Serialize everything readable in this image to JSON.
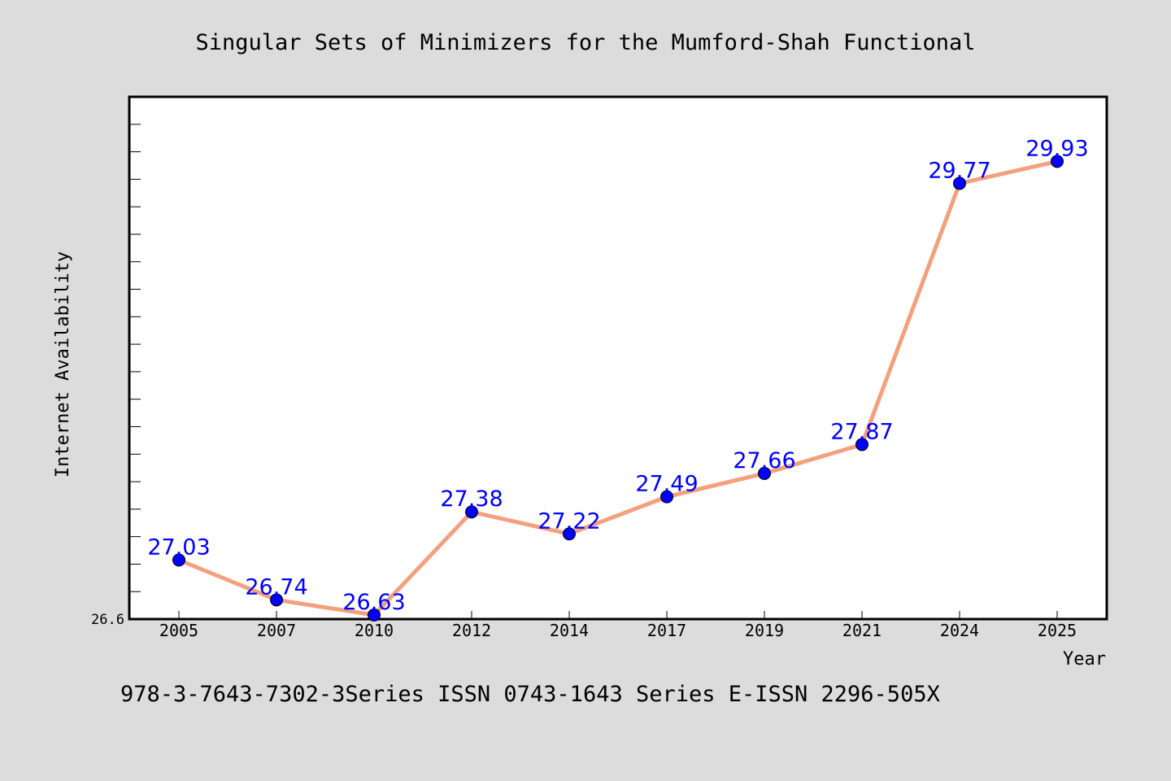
{
  "chart_data": {
    "type": "line",
    "title": "Singular Sets of Minimizers for the Mumford-Shah Functional",
    "xlabel": "Year",
    "ylabel": "Internet Availability",
    "categories": [
      "2005",
      "2007",
      "2010",
      "2012",
      "2014",
      "2017",
      "2019",
      "2021",
      "2024",
      "2025"
    ],
    "series": [
      {
        "values": [
          27.03,
          26.74,
          26.63,
          27.38,
          27.22,
          27.49,
          27.66,
          27.87,
          29.77,
          29.93
        ],
        "labels": [
          "27.03",
          "26.74",
          "26.63",
          "27.38",
          "27.22",
          "27.49",
          "27.66",
          "27.87",
          "29.77",
          "29.93"
        ]
      }
    ],
    "ylim": [
      26.6,
      30.4
    ],
    "yticks_labeled": [
      "26.6"
    ],
    "grid": false,
    "line_color": "#f4a07e",
    "marker_color": "#0000ff"
  },
  "footer_text": "978-3-7643-7302-3Series ISSN 0743-1643 Series E-ISSN 2296-505X"
}
